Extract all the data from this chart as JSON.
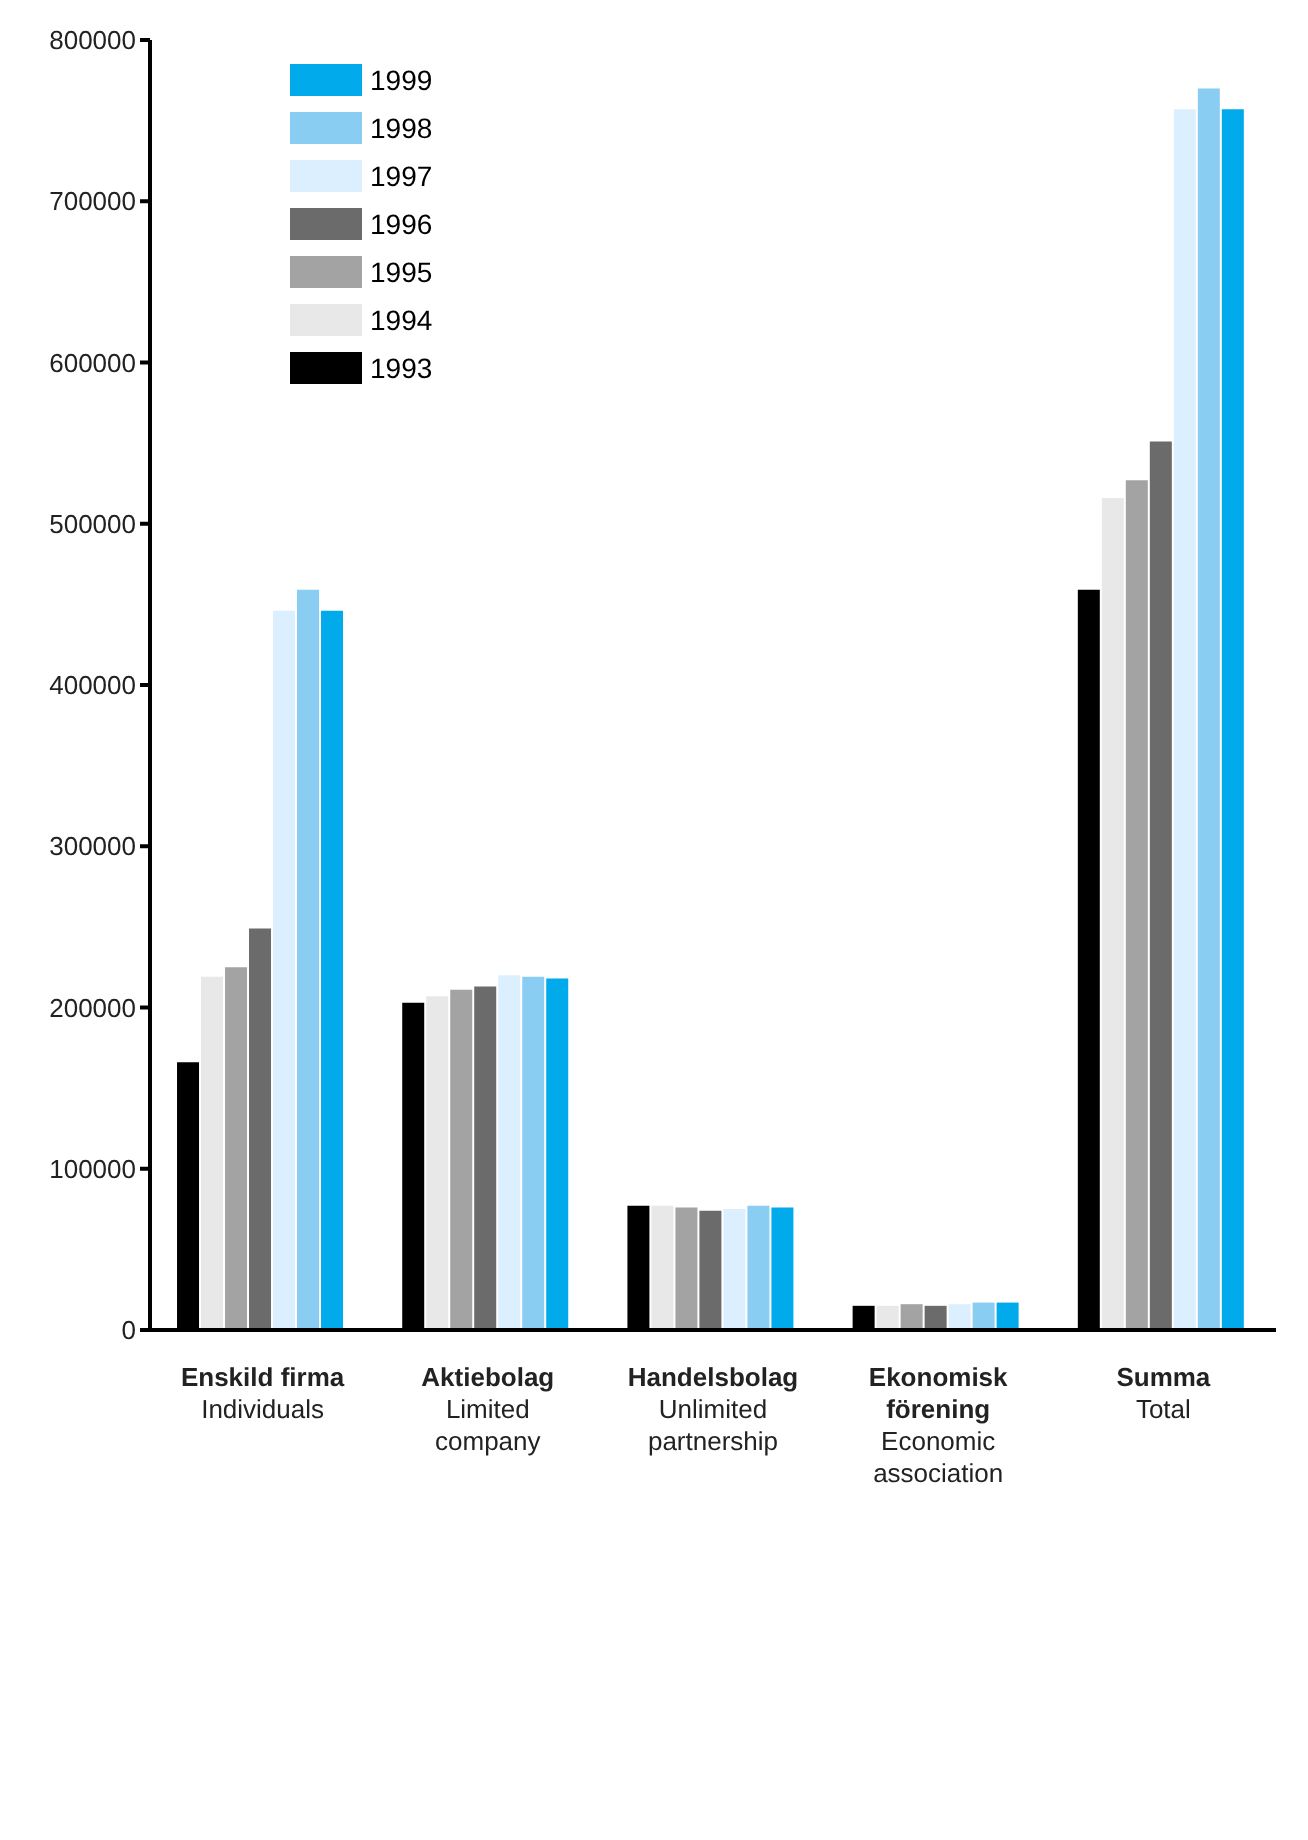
{
  "chart_data": {
    "type": "bar",
    "categories": [
      "Enskild firma\nIndividuals",
      "Aktiebolag\nLimited company",
      "Handelsbolag\nUnlimited partnership",
      "Ekonomisk förening\nEconomic association",
      "Summa\nTotal"
    ],
    "series": [
      {
        "name": "1993",
        "color": "#000000",
        "values": [
          166000,
          203000,
          77000,
          15000,
          459000
        ]
      },
      {
        "name": "1994",
        "color": "#e8e8e8",
        "values": [
          219000,
          207000,
          77000,
          15000,
          516000
        ]
      },
      {
        "name": "1995",
        "color": "#a3a3a3",
        "values": [
          225000,
          211000,
          76000,
          16000,
          527000
        ]
      },
      {
        "name": "1996",
        "color": "#6b6b6b",
        "values": [
          249000,
          213000,
          74000,
          15000,
          551000
        ]
      },
      {
        "name": "1997",
        "color": "#dcefff",
        "values": [
          446000,
          220000,
          75000,
          16000,
          757000
        ]
      },
      {
        "name": "1998",
        "color": "#8acdf3",
        "values": [
          459000,
          219000,
          77000,
          17000,
          770000
        ]
      },
      {
        "name": "1999",
        "color": "#00aaeb",
        "values": [
          446000,
          218000,
          76000,
          17000,
          757000
        ]
      }
    ],
    "ylim": [
      0,
      800000
    ],
    "yticks": [
      0,
      100000,
      200000,
      300000,
      400000,
      500000,
      600000,
      700000,
      800000
    ],
    "grid": false,
    "legend": "top left"
  }
}
